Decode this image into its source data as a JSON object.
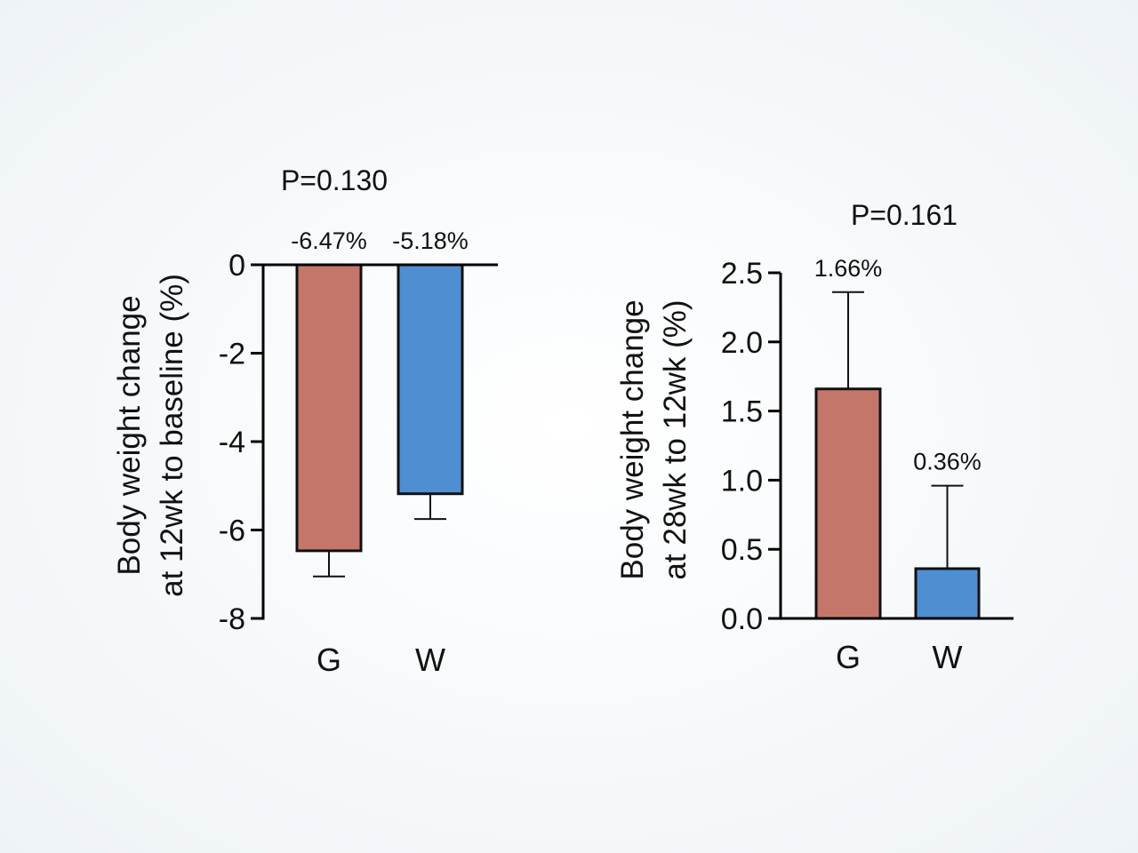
{
  "chart_data": [
    {
      "type": "bar",
      "ylabel_lines": [
        "Body weight change",
        "at 12wk to baseline (%)"
      ],
      "p_value": "P=0.130",
      "categories": [
        "G",
        "W"
      ],
      "values": [
        -6.47,
        -5.18
      ],
      "error_upper": [
        null,
        null
      ],
      "error_lower": [
        -7.05,
        -5.75
      ],
      "value_labels": [
        "-6.47%",
        "-5.18%"
      ],
      "colors": [
        "#c5766b",
        "#4f8ed0"
      ],
      "ylim": [
        -8,
        0
      ],
      "yticks": [
        0,
        -2,
        -4,
        -6,
        -8
      ],
      "ytick_labels": [
        "0",
        "-2",
        "-4",
        "-6",
        "-8"
      ]
    },
    {
      "type": "bar",
      "ylabel_lines": [
        "Body weight change",
        "at 28wk to 12wk (%)"
      ],
      "p_value": "P=0.161",
      "categories": [
        "G",
        "W"
      ],
      "values": [
        1.66,
        0.36
      ],
      "error_upper": [
        2.36,
        0.96
      ],
      "error_lower": [
        null,
        null
      ],
      "value_labels": [
        "1.66%",
        "0.36%"
      ],
      "colors": [
        "#c5766b",
        "#4f8ed0"
      ],
      "ylim": [
        0,
        2.5
      ],
      "yticks": [
        0.0,
        0.5,
        1.0,
        1.5,
        2.0,
        2.5
      ],
      "ytick_labels": [
        "0.0",
        "0.5",
        "1.0",
        "1.5",
        "2.0",
        "2.5"
      ]
    }
  ]
}
